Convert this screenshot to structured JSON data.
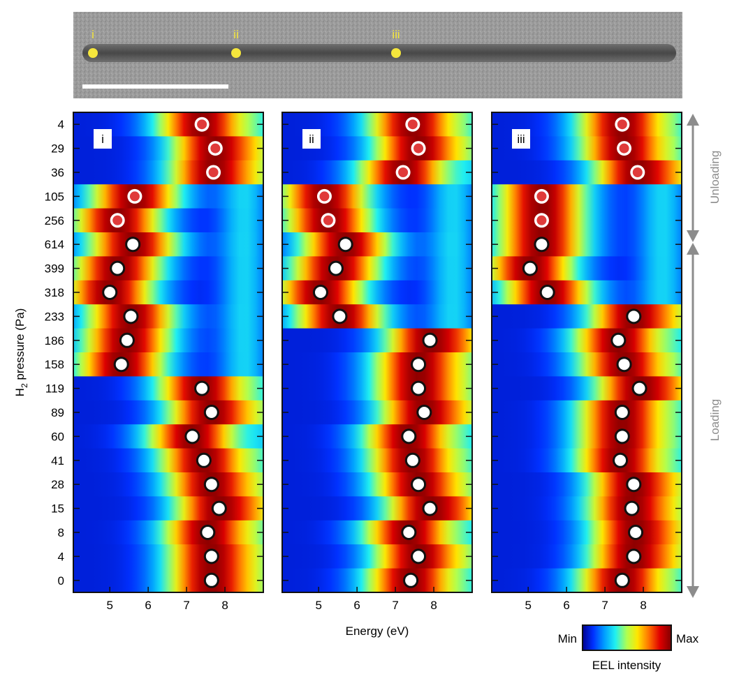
{
  "micrograph": {
    "site_labels": [
      "i",
      "ii",
      "iii"
    ],
    "marker_color": "#f5e63c"
  },
  "y_axis": {
    "label_main": "H",
    "label_sub": "2",
    "label_rest": " pressure (Pa)",
    "pressures": [
      "4",
      "29",
      "36",
      "105",
      "256",
      "614",
      "399",
      "318",
      "233",
      "186",
      "158",
      "119",
      "89",
      "60",
      "41",
      "28",
      "15",
      "8",
      "4",
      "0"
    ]
  },
  "x_axis": {
    "label": "Energy (eV)",
    "ticks": [
      "5",
      "6",
      "7",
      "8"
    ]
  },
  "side_labels": {
    "unloading": "Unloading",
    "loading": "Loading",
    "arrow_color": "#8c8c8c"
  },
  "colorbar": {
    "min": "Min",
    "max": "Max",
    "title": "EEL intensity"
  },
  "peak_marker_colors": {
    "unloading": "#e03a3a",
    "loading": "#111111"
  },
  "chart_data": [
    {
      "type": "heatmap",
      "panel": "i",
      "x_range_eV": [
        4.05,
        9.0
      ],
      "peaks_eV": [
        7.4,
        7.75,
        7.7,
        5.65,
        5.2,
        5.6,
        5.2,
        5.0,
        5.55,
        5.45,
        5.3,
        7.4,
        7.65,
        7.15,
        7.45,
        7.65,
        7.85,
        7.55,
        7.65,
        7.65
      ],
      "phase": [
        "U",
        "U",
        "U",
        "U",
        "U",
        "L",
        "L",
        "L",
        "L",
        "L",
        "L",
        "L",
        "L",
        "L",
        "L",
        "L",
        "L",
        "L",
        "L",
        "L"
      ]
    },
    {
      "type": "heatmap",
      "panel": "ii",
      "x_range_eV": [
        4.05,
        9.0
      ],
      "peaks_eV": [
        7.45,
        7.6,
        7.2,
        5.15,
        5.25,
        5.7,
        5.45,
        5.05,
        5.55,
        7.9,
        7.6,
        7.6,
        7.75,
        7.35,
        7.45,
        7.6,
        7.9,
        7.35,
        7.6,
        7.4
      ],
      "phase": [
        "U",
        "U",
        "U",
        "U",
        "U",
        "L",
        "L",
        "L",
        "L",
        "L",
        "L",
        "L",
        "L",
        "L",
        "L",
        "L",
        "L",
        "L",
        "L",
        "L"
      ]
    },
    {
      "type": "heatmap",
      "panel": "iii",
      "x_range_eV": [
        4.05,
        9.0
      ],
      "peaks_eV": [
        7.45,
        7.5,
        7.85,
        5.35,
        5.35,
        5.35,
        5.05,
        5.5,
        7.75,
        7.35,
        7.5,
        7.9,
        7.45,
        7.45,
        7.4,
        7.75,
        7.7,
        7.8,
        7.75,
        7.45
      ],
      "phase": [
        "U",
        "U",
        "U",
        "U",
        "U",
        "L",
        "L",
        "L",
        "L",
        "L",
        "L",
        "L",
        "L",
        "L",
        "L",
        "L",
        "L",
        "L",
        "L",
        "L"
      ]
    }
  ]
}
